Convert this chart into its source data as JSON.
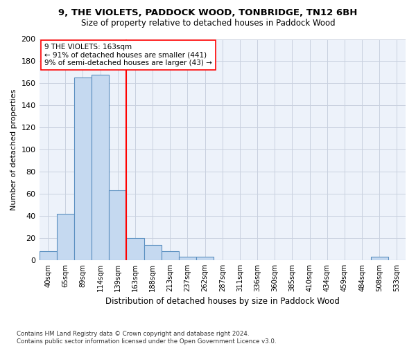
{
  "title1": "9, THE VIOLETS, PADDOCK WOOD, TONBRIDGE, TN12 6BH",
  "title2": "Size of property relative to detached houses in Paddock Wood",
  "xlabel": "Distribution of detached houses by size in Paddock Wood",
  "ylabel": "Number of detached properties",
  "footnote": "Contains HM Land Registry data © Crown copyright and database right 2024.\nContains public sector information licensed under the Open Government Licence v3.0.",
  "bin_labels": [
    "40sqm",
    "65sqm",
    "89sqm",
    "114sqm",
    "139sqm",
    "163sqm",
    "188sqm",
    "213sqm",
    "237sqm",
    "262sqm",
    "287sqm",
    "311sqm",
    "336sqm",
    "360sqm",
    "385sqm",
    "410sqm",
    "434sqm",
    "459sqm",
    "484sqm",
    "508sqm",
    "533sqm"
  ],
  "bar_values": [
    8,
    42,
    165,
    168,
    63,
    20,
    14,
    8,
    3,
    3,
    0,
    0,
    0,
    0,
    0,
    0,
    0,
    0,
    0,
    3,
    0
  ],
  "bar_color": "#c5d9f0",
  "bar_edge_color": "#5a8fc0",
  "vline_color": "red",
  "annotation_text": "9 THE VIOLETS: 163sqm\n← 91% of detached houses are smaller (441)\n9% of semi-detached houses are larger (43) →",
  "annotation_box_color": "white",
  "annotation_box_edge": "red",
  "ylim": [
    0,
    200
  ],
  "yticks": [
    0,
    20,
    40,
    60,
    80,
    100,
    120,
    140,
    160,
    180,
    200
  ],
  "background_color": "#edf2fa",
  "grid_color": "#c8d0df"
}
